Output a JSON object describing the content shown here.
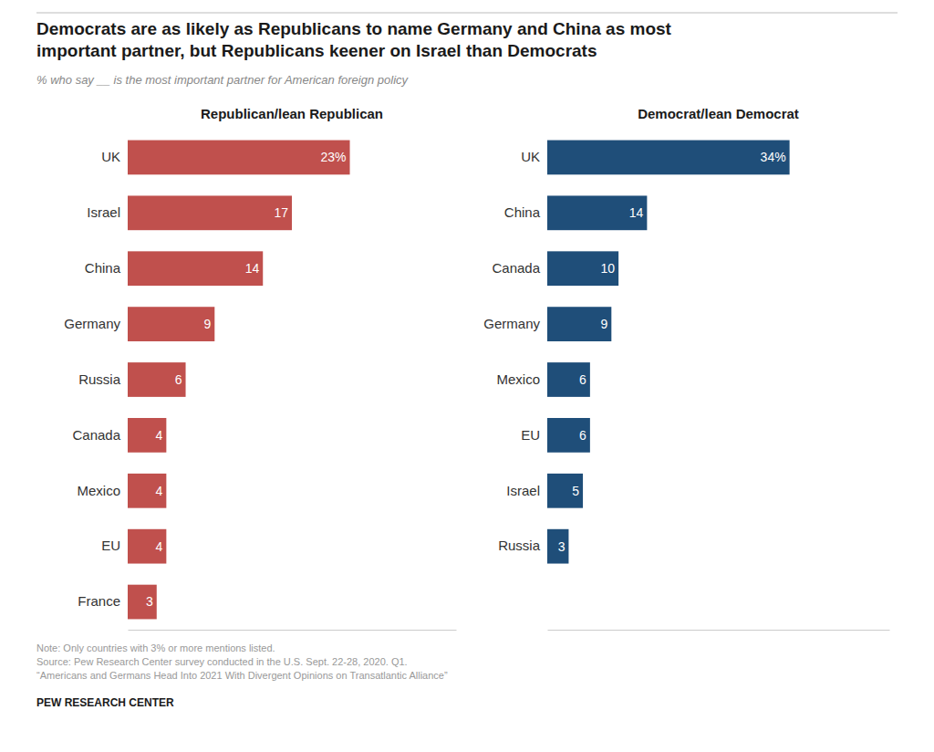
{
  "title": [
    "Democrats are as likely as Republicans to name Germany and China as most",
    "important partner, but Republicans keener on Israel than Democrats"
  ],
  "subtitle": "% who say __ is the most important partner for American foreign policy",
  "notes": [
    "Note: Only countries with 3% or more mentions listed.",
    "Source: Pew Research Center survey conducted in the U.S. Sept. 22-28, 2020. Q1.",
    "“Americans and Germans Head Into 2021 With Divergent Opinions on Transatlantic Alliance”"
  ],
  "footer": "PEW RESEARCH CENTER",
  "chart_data": [
    {
      "type": "bar",
      "orientation": "horizontal",
      "title": "Republican/lean Republican",
      "categories": [
        "UK",
        "Israel",
        "China",
        "Germany",
        "Russia",
        "Canada",
        "Mexico",
        "EU",
        "France"
      ],
      "values": [
        23,
        17,
        14,
        9,
        6,
        4,
        4,
        4,
        3
      ],
      "value_labels": [
        "23%",
        "17",
        "14",
        "9",
        "6",
        "4",
        "4",
        "4",
        "3"
      ],
      "color": "#C0504D",
      "xlim": [
        0,
        34
      ],
      "data_labels": true,
      "tick_labels": "y",
      "grid": false
    },
    {
      "type": "bar",
      "orientation": "horizontal",
      "title": "Democrat/lean Democrat",
      "categories": [
        "UK",
        "China",
        "Canada",
        "Germany",
        "Mexico",
        "EU",
        "Israel",
        "Russia"
      ],
      "values": [
        34,
        14,
        10,
        9,
        6,
        6,
        5,
        3
      ],
      "value_labels": [
        "34%",
        "14",
        "10",
        "9",
        "6",
        "6",
        "5",
        "3"
      ],
      "color": "#1F4E79",
      "xlim": [
        0,
        48
      ],
      "data_labels": true,
      "tick_labels": "y",
      "grid": false
    }
  ]
}
